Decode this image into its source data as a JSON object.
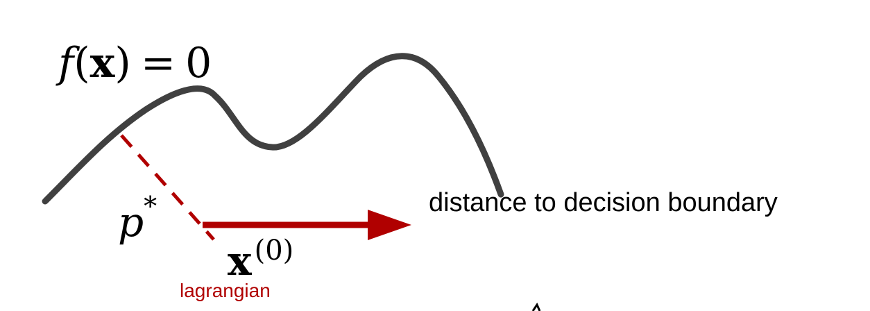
{
  "colors": {
    "boundary": "#404040",
    "accent": "#b00000",
    "text": "#000000",
    "background": "#ffffff"
  },
  "boundary_equation": {
    "function": "f",
    "open_paren": "(",
    "variable": "x",
    "close_paren": ")",
    "equals": "=",
    "value": "0"
  },
  "projection_label": {
    "base": "p",
    "superscript": "*"
  },
  "point_label": {
    "base": "x",
    "superscript": "(0)"
  },
  "method_label": "lagrangian",
  "arrow_caption": "distance to decision boundary"
}
